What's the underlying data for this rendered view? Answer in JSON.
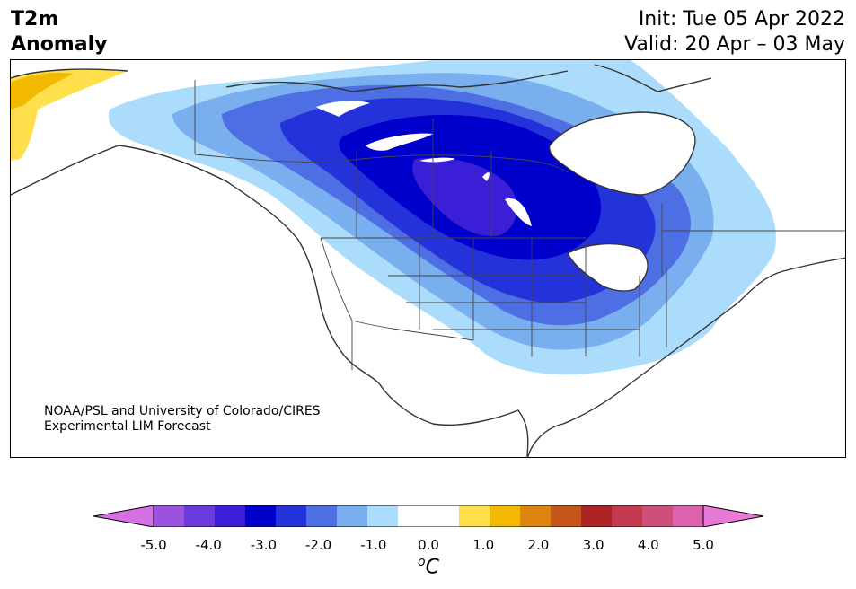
{
  "title": {
    "line1": "T2m",
    "line2": "Anomaly"
  },
  "init": "Init: Tue 05 Apr 2022",
  "valid": "Valid: 20 Apr – 03 May",
  "credit": {
    "line1": "NOAA/PSL and University of Colorado/CIRES",
    "line2": "Experimental LIM Forecast"
  },
  "colorbar": {
    "colors": [
      "#d66fe4",
      "#9b52df",
      "#6b3ade",
      "#3a1fd6",
      "#0000cc",
      "#2333d9",
      "#4e6fe3",
      "#79aeef",
      "#acdcfb",
      "#ffffff",
      "#ffffff",
      "#ffe04c",
      "#f3b800",
      "#de8510",
      "#c55518",
      "#ac2424",
      "#c43a50",
      "#cf4f7c",
      "#dc62b0",
      "#e87ad6"
    ],
    "ticks": [
      "-5.0",
      "-4.0",
      "-3.0",
      "-2.0",
      "-1.0",
      "0.0",
      "1.0",
      "2.0",
      "3.0",
      "4.0",
      "5.0"
    ],
    "unit_sup": "o",
    "unit": "C"
  }
}
